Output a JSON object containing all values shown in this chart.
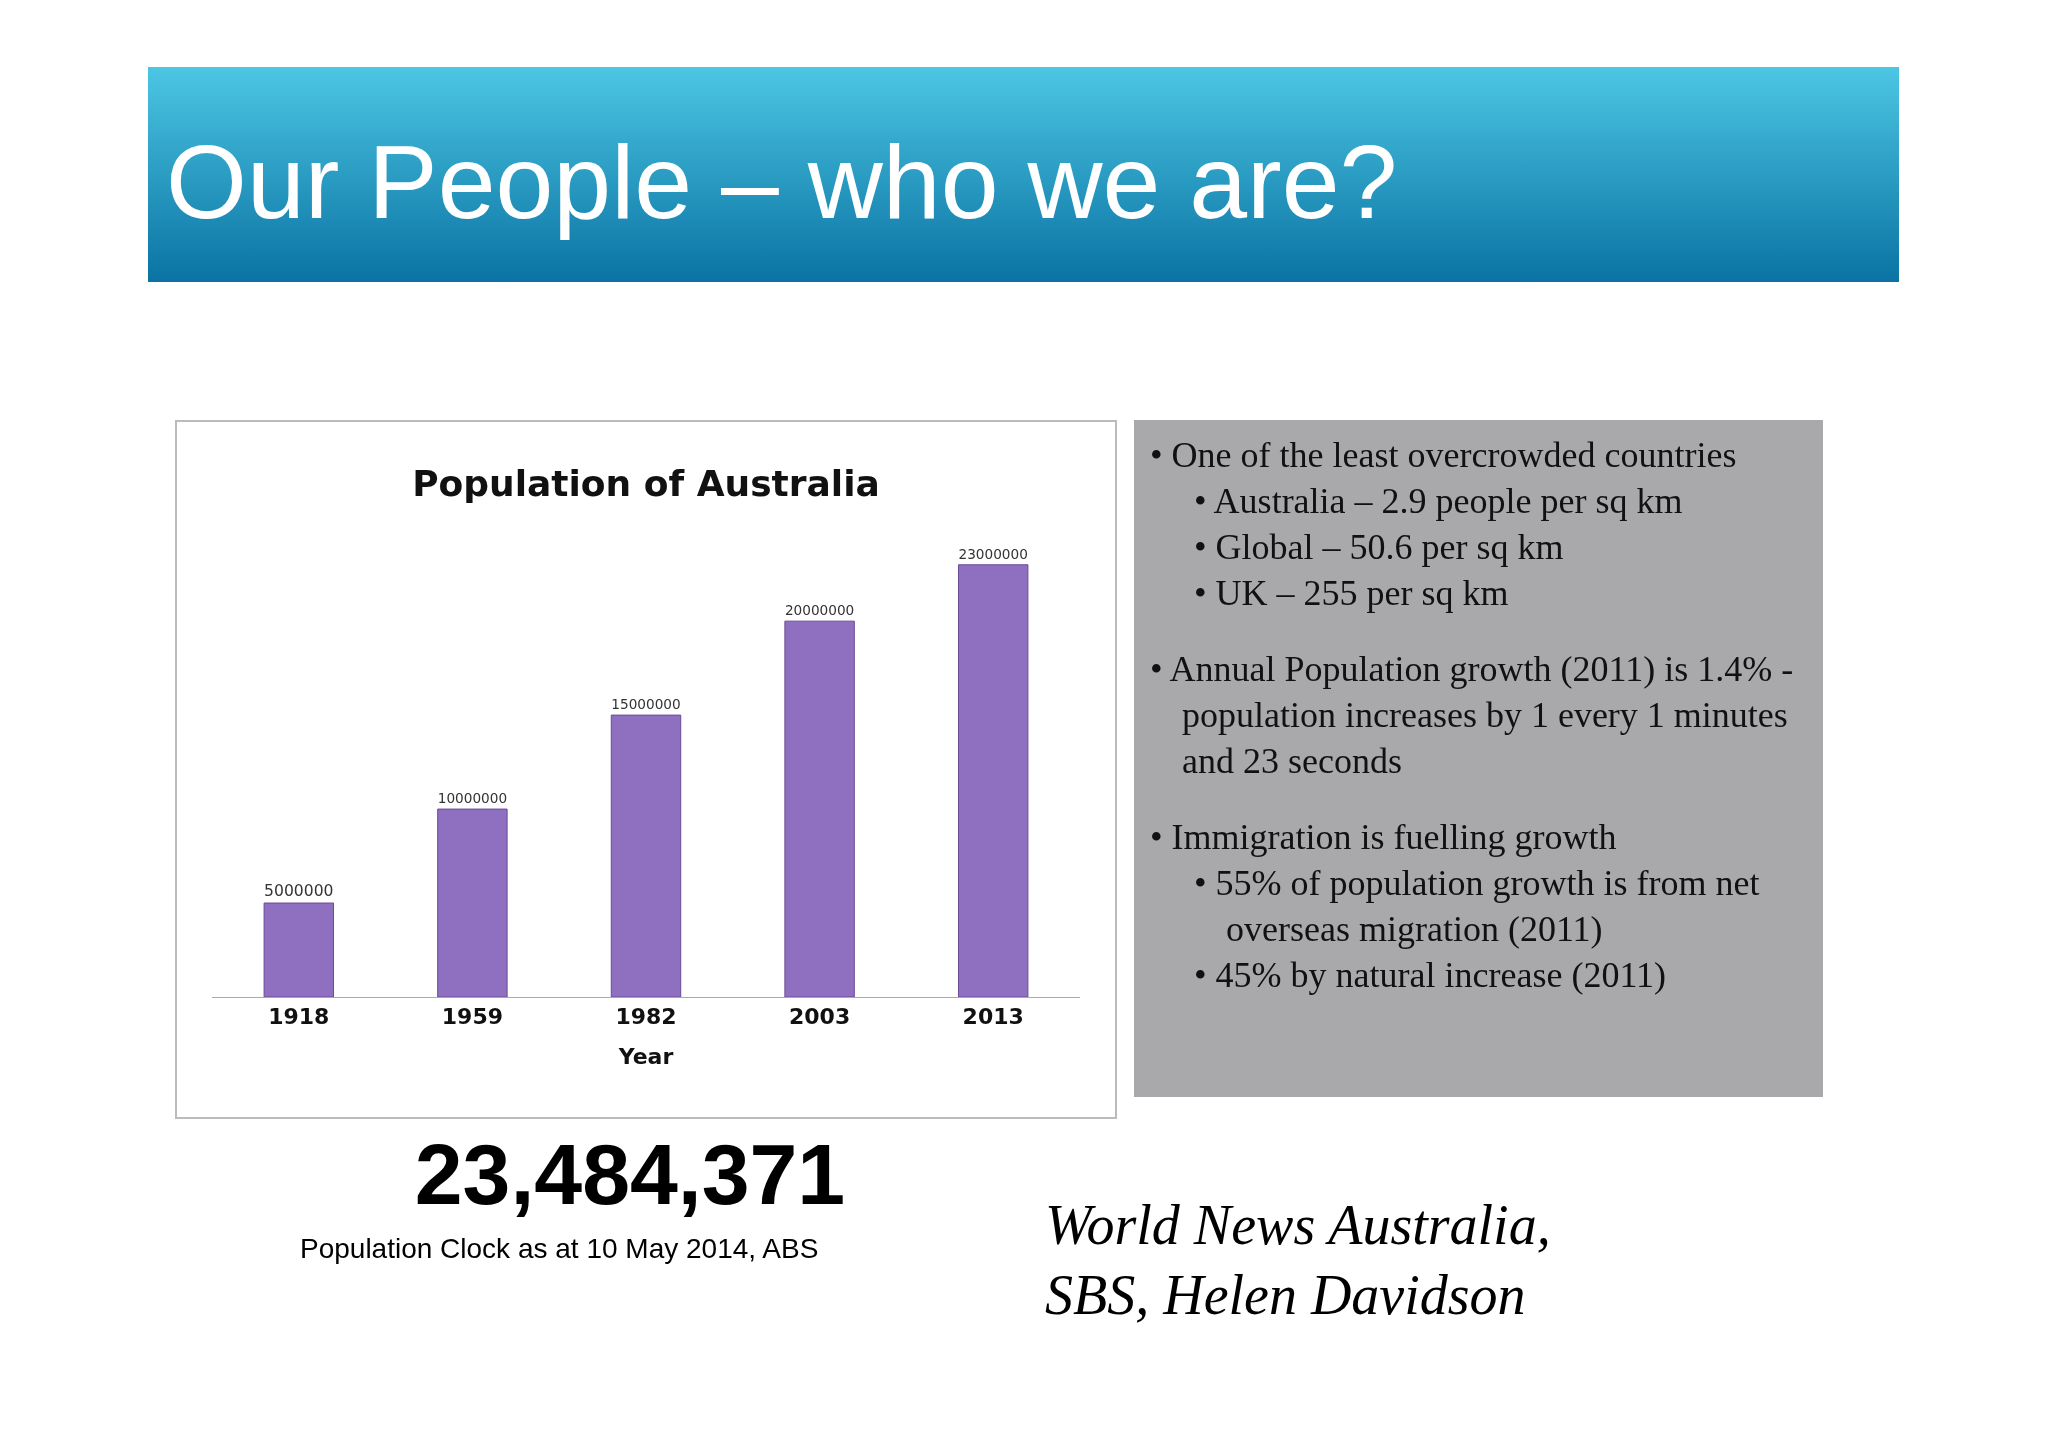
{
  "chart_data": {
    "type": "bar",
    "title": "Population of Australia",
    "xlabel": "Year",
    "categories": [
      "1918",
      "1959",
      "1982",
      "2003",
      "2013"
    ],
    "values": [
      5000000,
      10000000,
      15000000,
      20000000,
      23000000
    ],
    "color": "#8f6fc0",
    "data_labels": true,
    "grid": false,
    "legend": false,
    "annotations": [
      "Our People – who we are?",
      "• One of the least overcrowded countries",
      "• Australia – 2.9 people per sq km",
      "• Global – 50.6 per sq km",
      "• UK – 255 per sq km",
      "• Annual Population growth (2011) is 1.4% - population increases by 1 every 1 minutes and 23 seconds",
      "• Immigration is fuelling growth",
      "• 55% of population growth is from net overseas migration (2011)",
      "• 45% by natural increase (2011)",
      "23,484,371",
      "Population Clock as at 10 May 2014, ABS",
      "World News Australia, SBS, Helen Davidson"
    ]
  }
}
